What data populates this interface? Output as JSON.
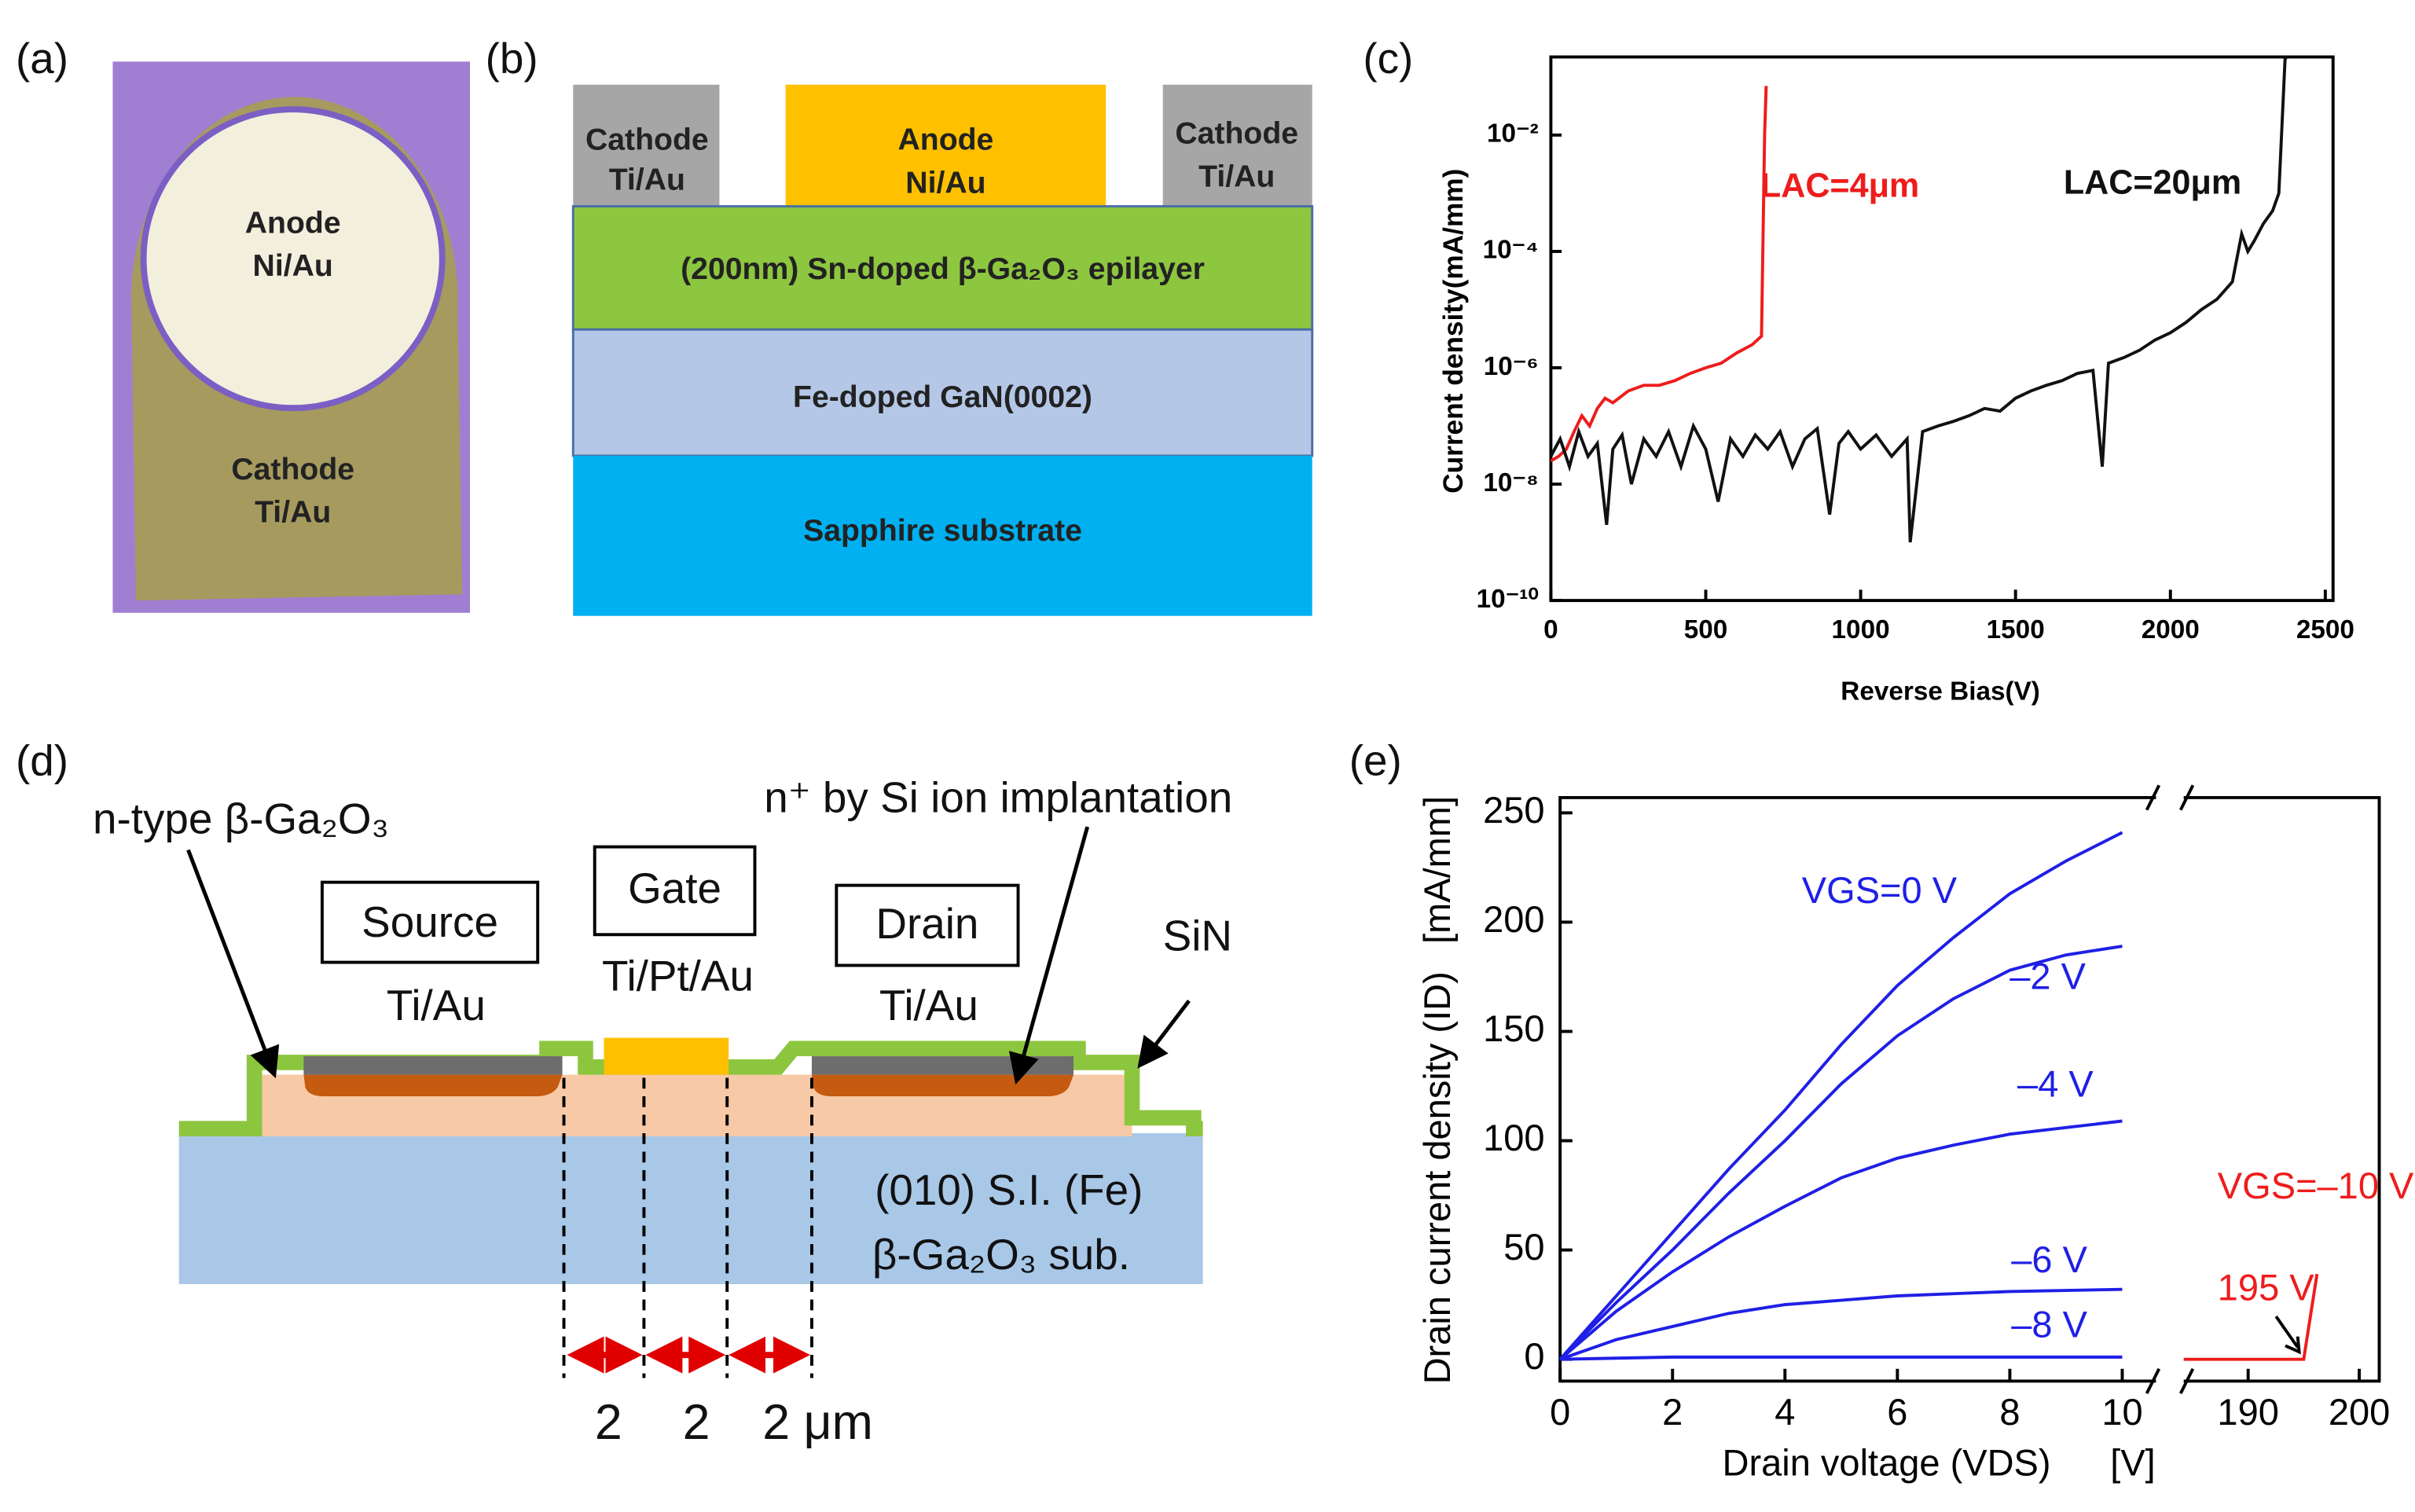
{
  "panels": {
    "a": {
      "label": "(a)",
      "texts": [
        "Anode",
        "Ni/Au",
        "Cathode",
        "Ti/Au"
      ]
    },
    "b": {
      "label": "(b)",
      "contacts": [
        "Cathode",
        "Ti/Au",
        "Anode",
        "Ni/Au",
        "Cathode",
        "Ti/Au"
      ],
      "layers": [
        "(200nm) Sn-doped β-Ga₂O₃ epilayer",
        "Fe-doped GaN(0002)",
        "Sapphire substrate"
      ]
    },
    "c": {
      "label": "(c)"
    },
    "d": {
      "label": "(d)",
      "n_type": "n-type β-Ga₂O₃",
      "implant": "n⁺ by Si ion implantation",
      "sin": "SiN",
      "source": "Source",
      "source_metal": "Ti/Au",
      "gate": "Gate",
      "gate_metal": "Ti/Pt/Au",
      "drain": "Drain",
      "drain_metal": "Ti/Au",
      "sub1": "(010) S.I. (Fe)",
      "sub2": "β-Ga₂O₃ sub.",
      "d1": "2",
      "d2": "2",
      "d3": "2 μm"
    },
    "e": {
      "label": "(e)"
    }
  },
  "chart_data": [
    {
      "type": "line",
      "log_y": true,
      "ylabel": "Current density(mA/mm)",
      "xlabel": "Reverse Bias(V)",
      "xlim": [
        0,
        2525
      ],
      "xticks": [
        0,
        500,
        1000,
        1500,
        2000,
        2500
      ],
      "ylim": [
        1e-10,
        0.22
      ],
      "yticks": [
        {
          "value": 1e-10,
          "label": "10⁻¹⁰"
        },
        {
          "value": 1e-08,
          "label": "10⁻⁸"
        },
        {
          "value": 1e-06,
          "label": "10⁻⁶"
        },
        {
          "value": 0.0001,
          "label": "10⁻⁴"
        },
        {
          "value": 0.01,
          "label": "10⁻²"
        }
      ],
      "series": [
        {
          "name": "LAC=4μm",
          "color": "#ee1c1c",
          "x": [
            0,
            25,
            50,
            75,
            100,
            125,
            150,
            175,
            200,
            250,
            300,
            350,
            400,
            450,
            500,
            550,
            600,
            650,
            680,
            690,
            695
          ],
          "values": [
            2.5e-08,
            3e-08,
            4e-08,
            8e-08,
            1.5e-07,
            1e-07,
            2e-07,
            3e-07,
            2.5e-07,
            4e-07,
            5e-07,
            5e-07,
            6e-07,
            8e-07,
            1e-06,
            1.2e-06,
            1.8e-06,
            2.5e-06,
            3.5e-06,
            0.01,
            0.07
          ]
        },
        {
          "name": "LAC=20μm",
          "color": "#111111",
          "x": [
            0,
            30,
            60,
            90,
            120,
            150,
            180,
            200,
            230,
            260,
            300,
            340,
            380,
            420,
            460,
            500,
            540,
            580,
            620,
            660,
            700,
            740,
            780,
            820,
            860,
            900,
            930,
            960,
            1000,
            1050,
            1100,
            1150,
            1160,
            1200,
            1250,
            1300,
            1350,
            1400,
            1450,
            1500,
            1550,
            1600,
            1650,
            1700,
            1750,
            1780,
            1800,
            1850,
            1900,
            1950,
            2000,
            2050,
            2100,
            2150,
            2200,
            2230,
            2250,
            2270,
            2300,
            2330,
            2350,
            2370,
            2375
          ],
          "values": [
            3e-08,
            6e-08,
            2e-08,
            8e-08,
            3e-08,
            5e-08,
            2e-09,
            4e-08,
            7e-08,
            1e-08,
            6e-08,
            3e-08,
            8e-08,
            2e-08,
            1e-07,
            4e-08,
            5e-09,
            6e-08,
            3e-08,
            7e-08,
            4e-08,
            8e-08,
            2e-08,
            6e-08,
            9e-08,
            3e-09,
            5e-08,
            8e-08,
            4e-08,
            7e-08,
            3e-08,
            6e-08,
            1e-09,
            8e-08,
            1e-07,
            1.2e-07,
            1.5e-07,
            2e-07,
            1.8e-07,
            3e-07,
            4e-07,
            5e-07,
            6e-07,
            8e-07,
            9e-07,
            2e-08,
            1.2e-06,
            1.5e-06,
            2e-06,
            3e-06,
            4e-06,
            6e-06,
            1e-05,
            1.5e-05,
            3e-05,
            0.0002,
            0.0001,
            0.00015,
            0.0003,
            0.0005,
            0.001,
            0.2,
            0.22
          ]
        }
      ]
    },
    {
      "type": "line",
      "ylabel": "Drain current density (ID)",
      "yunit": "[mA/mm]",
      "xlabel": "Drain voltage (VDS)",
      "xunit": "[V]",
      "xlim": [
        0,
        10.6
      ],
      "xticks": [
        0,
        2,
        4,
        6,
        8,
        10
      ],
      "xlim2": [
        184.2,
        201.8
      ],
      "xticks2": [
        190,
        200
      ],
      "ylim": [
        -10,
        257
      ],
      "yticks": [
        0,
        50,
        100,
        150,
        200,
        250
      ],
      "annotation": "195 V",
      "series": [
        {
          "name": "VGS=0 V",
          "color": "#1f1fe6",
          "x": [
            0,
            1,
            2,
            3,
            4,
            5,
            6,
            7,
            8,
            9,
            10
          ],
          "values": [
            0,
            29,
            58,
            87,
            114,
            144,
            171,
            193,
            213,
            228,
            241
          ]
        },
        {
          "name": "–2 V",
          "color": "#1f1fe6",
          "x": [
            0,
            1,
            2,
            3,
            4,
            5,
            6,
            7,
            8,
            9,
            10
          ],
          "values": [
            0,
            26,
            50,
            76,
            100,
            126,
            148,
            165,
            178,
            185,
            189
          ]
        },
        {
          "name": "–4 V",
          "color": "#1f1fe6",
          "x": [
            0,
            1,
            2,
            3,
            4,
            5,
            6,
            7,
            8,
            9,
            10
          ],
          "values": [
            0,
            22,
            40,
            56,
            70,
            83,
            92,
            98,
            103,
            106,
            109
          ]
        },
        {
          "name": "–6 V",
          "color": "#1f1fe6",
          "x": [
            0,
            1,
            2,
            3,
            4,
            5,
            6,
            7,
            8,
            9,
            10
          ],
          "values": [
            0,
            9,
            15,
            21,
            25,
            27,
            29,
            30,
            31,
            31.5,
            32
          ]
        },
        {
          "name": "–8 V",
          "color": "#1f1fe6",
          "x": [
            0,
            1,
            2,
            3,
            4,
            5,
            6,
            7,
            8,
            9,
            10
          ],
          "values": [
            0,
            0.5,
            1,
            1,
            1,
            1,
            1,
            1,
            1,
            1,
            1
          ]
        },
        {
          "name": "VGS=–10 V",
          "color": "#ee1c1c",
          "x": [
            184.2,
            195,
            196.2
          ],
          "values": [
            0,
            0,
            39
          ]
        }
      ]
    }
  ]
}
